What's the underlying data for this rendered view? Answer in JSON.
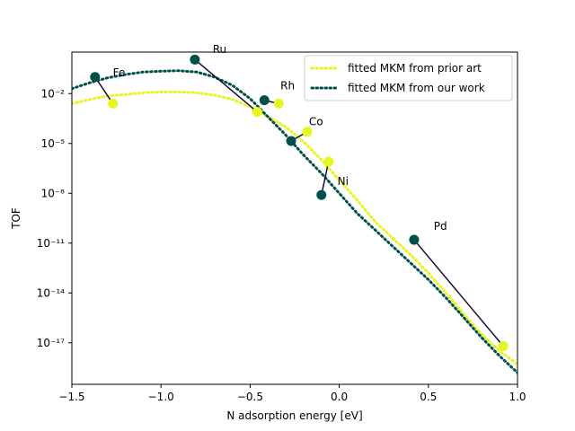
{
  "chart_data": {
    "type": "scatter",
    "title": "",
    "xlabel": "N adsorption energy [eV]",
    "ylabel": "TOF",
    "xlim": [
      -1.5,
      1.0
    ],
    "ylim_log10": [
      -19.5,
      0.5
    ],
    "y_scale": "log",
    "grid": false,
    "legend_position": "top-right",
    "x_ticks": [
      -1.5,
      -1.0,
      -0.5,
      0.0,
      0.5,
      1.0
    ],
    "x_tick_labels": [
      "−1.5",
      "−1.0",
      "−0.5",
      "0.0",
      "0.5",
      "1.0"
    ],
    "y_ticks_log10": [
      -17,
      -14,
      -11,
      -8,
      -5,
      -2
    ],
    "y_tick_labels": [
      "10⁻¹⁷",
      "10⁻¹⁴",
      "10⁻¹¹",
      "10⁻⁸",
      "10⁻⁵",
      "10⁻²"
    ],
    "series": [
      {
        "name": "fitted MKM from prior art",
        "style": "dotted",
        "color": "#e6f61f",
        "x": [
          -1.5,
          -1.4,
          -1.3,
          -1.2,
          -1.1,
          -1.0,
          -0.9,
          -0.8,
          -0.7,
          -0.6,
          -0.5,
          -0.4,
          -0.3,
          -0.2,
          -0.1,
          0.0,
          0.1,
          0.2,
          0.3,
          0.4,
          0.5,
          0.6,
          0.7,
          0.8,
          0.9,
          1.0
        ],
        "log10": [
          -2.6,
          -2.35,
          -2.15,
          -2.05,
          -1.95,
          -1.9,
          -1.9,
          -1.95,
          -2.1,
          -2.35,
          -2.8,
          -3.4,
          -4.0,
          -4.9,
          -6.0,
          -7.2,
          -8.4,
          -9.7,
          -10.7,
          -11.7,
          -12.8,
          -14.0,
          -15.3,
          -16.5,
          -17.5,
          -18.3
        ]
      },
      {
        "name": "fitted MKM from our work",
        "style": "dotted",
        "color": "#00504a",
        "x": [
          -1.5,
          -1.4,
          -1.3,
          -1.2,
          -1.1,
          -1.0,
          -0.9,
          -0.8,
          -0.7,
          -0.6,
          -0.5,
          -0.4,
          -0.3,
          -0.2,
          -0.1,
          0.0,
          0.1,
          0.2,
          0.3,
          0.4,
          0.5,
          0.6,
          0.7,
          0.8,
          0.9,
          1.0
        ],
        "log10": [
          -1.7,
          -1.35,
          -1.05,
          -0.85,
          -0.7,
          -0.65,
          -0.62,
          -0.7,
          -1.0,
          -1.5,
          -2.3,
          -3.4,
          -4.5,
          -5.7,
          -6.8,
          -8.0,
          -9.2,
          -10.2,
          -11.2,
          -12.2,
          -13.2,
          -14.3,
          -15.5,
          -16.7,
          -17.8,
          -18.8
        ]
      }
    ],
    "metals": [
      {
        "label": "Fe",
        "prior": [
          -1.27,
          -2.6
        ],
        "ours": [
          -1.37,
          -1.0
        ],
        "label_at": [
          -1.27,
          -0.95
        ]
      },
      {
        "label": "Ru",
        "prior": [
          -0.46,
          -3.1
        ],
        "ours": [
          -0.81,
          0.05
        ],
        "label_at": [
          -0.71,
          0.45
        ]
      },
      {
        "label": "Rh",
        "prior": [
          -0.34,
          -2.6
        ],
        "ours": [
          -0.42,
          -2.4
        ],
        "label_at": [
          -0.33,
          -1.75
        ]
      },
      {
        "label": "Co",
        "prior": [
          -0.18,
          -4.3
        ],
        "ours": [
          -0.27,
          -4.85
        ],
        "label_at": [
          -0.17,
          -3.9
        ]
      },
      {
        "label": "Ni",
        "prior": [
          -0.06,
          -6.1
        ],
        "ours": [
          -0.1,
          -8.1
        ],
        "label_at": [
          -0.01,
          -7.5
        ]
      },
      {
        "label": "Pd",
        "prior": [
          0.92,
          -17.2
        ],
        "ours": [
          0.42,
          -10.8
        ],
        "label_at": [
          0.53,
          -10.2
        ]
      }
    ],
    "prior_point_color": "#e6f61f",
    "ours_point_color": "#00504a",
    "connector_color": "#1a0a3a"
  }
}
